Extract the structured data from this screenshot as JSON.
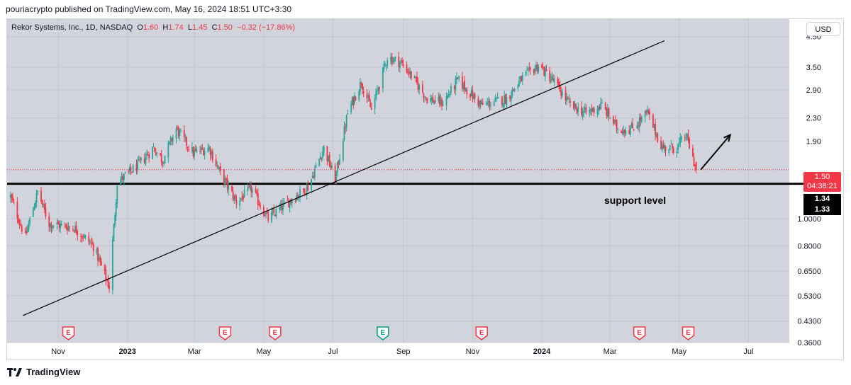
{
  "header": {
    "published_text": "pouriacrypto published on TradingView.com, May 16, 2024 18:51 UTC+3:30"
  },
  "legend": {
    "symbol": "Rekor Systems, Inc., 1D, NASDAQ",
    "o_label": "O",
    "o_value": "1.60",
    "h_label": "H",
    "h_value": "1.74",
    "l_label": "L",
    "l_value": "1.45",
    "c_label": "C",
    "c_value": "1.50",
    "change": "−0.32 (−17.86%)"
  },
  "currency_button": "USD",
  "price_badge": {
    "price": "1.50",
    "countdown": "04:38:21"
  },
  "support_badges": [
    "1.34",
    "1.33"
  ],
  "annotation": "support level",
  "footer": {
    "brand": "TradingView"
  },
  "colors": {
    "up": "#26a69a",
    "down": "#f23645",
    "plot_bg": "#d1d4dc",
    "earnings": "#f23645",
    "earnings_future": "#089981"
  },
  "chart_data": {
    "type": "candlestick",
    "scale": "log",
    "y_ticks": [
      "4.50",
      "3.50",
      "2.90",
      "2.30",
      "1.90",
      "1.0000",
      "0.8000",
      "0.6500",
      "0.5300",
      "0.4300",
      "0.3600"
    ],
    "x_ticks": [
      "Nov",
      "2023",
      "Mar",
      "May",
      "Jul",
      "Sep",
      "Nov",
      "2024",
      "Mar",
      "May",
      "Jul"
    ],
    "x_tick_dates": [
      "2022-11-01",
      "2023-01-01",
      "2023-03-01",
      "2023-05-01",
      "2023-07-01",
      "2023-09-01",
      "2023-11-01",
      "2024-01-01",
      "2024-03-01",
      "2024-05-01",
      "2024-07-01"
    ],
    "x_range": [
      "2022-09-17",
      "2024-08-06"
    ],
    "ylim": [
      0.36,
      5.2
    ],
    "last_close": 1.5,
    "support_levels": [
      1.34,
      1.33
    ],
    "price_series": [
      [
        "2022-09-20",
        1.2
      ],
      [
        "2022-10-03",
        0.86
      ],
      [
        "2022-10-14",
        1.25
      ],
      [
        "2022-10-24",
        0.96
      ],
      [
        "2022-11-15",
        0.93
      ],
      [
        "2022-12-02",
        0.8
      ],
      [
        "2022-12-16",
        0.57
      ],
      [
        "2022-12-23",
        1.35
      ],
      [
        "2023-01-10",
        1.55
      ],
      [
        "2023-01-24",
        1.8
      ],
      [
        "2023-02-01",
        1.62
      ],
      [
        "2023-02-13",
        2.1
      ],
      [
        "2023-02-28",
        1.72
      ],
      [
        "2023-03-14",
        1.8
      ],
      [
        "2023-03-24",
        1.45
      ],
      [
        "2023-04-07",
        1.15
      ],
      [
        "2023-04-20",
        1.28
      ],
      [
        "2023-05-05",
        1.0
      ],
      [
        "2023-05-19",
        1.12
      ],
      [
        "2023-06-09",
        1.3
      ],
      [
        "2023-06-23",
        1.8
      ],
      [
        "2023-07-03",
        1.38
      ],
      [
        "2023-07-14",
        2.4
      ],
      [
        "2023-07-26",
        3.1
      ],
      [
        "2023-08-04",
        2.45
      ],
      [
        "2023-08-18",
        3.8
      ],
      [
        "2023-08-29",
        3.65
      ],
      [
        "2023-09-05",
        3.4
      ],
      [
        "2023-09-22",
        2.7
      ],
      [
        "2023-10-06",
        2.6
      ],
      [
        "2023-10-19",
        3.15
      ],
      [
        "2023-11-09",
        2.55
      ],
      [
        "2023-12-01",
        2.7
      ],
      [
        "2023-12-15",
        3.2
      ],
      [
        "2023-12-29",
        3.55
      ],
      [
        "2024-01-12",
        3.1
      ],
      [
        "2024-01-26",
        2.55
      ],
      [
        "2024-02-09",
        2.4
      ],
      [
        "2024-02-23",
        2.55
      ],
      [
        "2024-03-08",
        2.1
      ],
      [
        "2024-03-20",
        2.1
      ],
      [
        "2024-04-03",
        2.4
      ],
      [
        "2024-04-16",
        1.8
      ],
      [
        "2024-04-29",
        1.8
      ],
      [
        "2024-05-07",
        2.0
      ],
      [
        "2024-05-16",
        1.5
      ]
    ],
    "trendline": [
      [
        "2022-10-01",
        0.45
      ],
      [
        "2024-04-18",
        4.35
      ]
    ],
    "arrow": [
      [
        "2024-05-20",
        1.5
      ],
      [
        "2024-06-15",
        2.0
      ]
    ],
    "earnings_dates": [
      "2022-11-10",
      "2023-03-28",
      "2023-05-11",
      "2023-08-14",
      "2023-11-09",
      "2024-03-27",
      "2024-05-09"
    ],
    "earnings_future_index": 3,
    "earnings_label": "E"
  }
}
